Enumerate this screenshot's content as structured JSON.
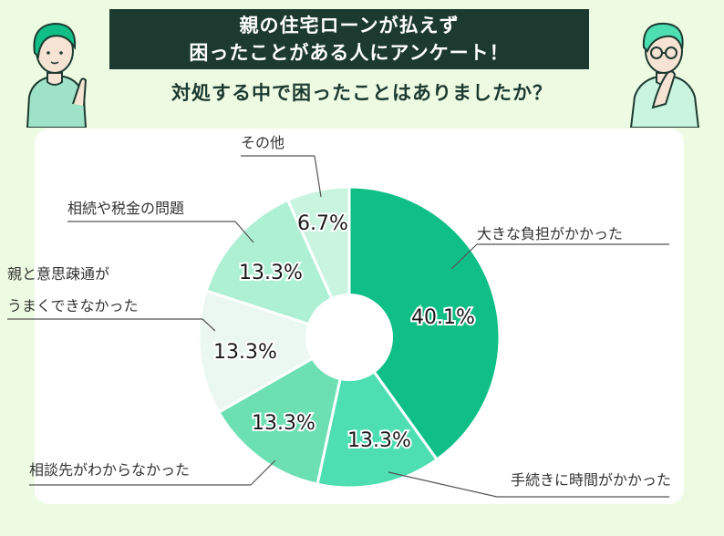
{
  "header": {
    "title_line1": "親の住宅ローンが払えず",
    "title_line2": "困ったことがある人にアンケート！",
    "question": "対処する中で困ったことはありましたか？"
  },
  "colors": {
    "banner_bg": "#1d3a31",
    "background": "#eefbe3",
    "slice_1": "#0fbf85",
    "slice_2": "#4ddeb2",
    "slice_3": "#6ce0b3",
    "slice_4": "#ebf8f1",
    "slice_5": "#aef0d3",
    "slice_6": "#c9f4e0",
    "slice_7": "#ebf8f1"
  },
  "chart_data": {
    "type": "pie",
    "donut": true,
    "title": "対処する中で困ったことはありましたか？",
    "slices": [
      {
        "label": "大きな負担がかかった",
        "value": 40.1,
        "value_label": "40.1%"
      },
      {
        "label": "手続きに時間がかかった",
        "value": 13.3,
        "value_label": "13.3%"
      },
      {
        "label": "相談先がわからなかった",
        "value": 13.3,
        "value_label": "13.3%"
      },
      {
        "label": "親と意思疎通がうまくできなかった",
        "label_lines": [
          "親と意思疎通が",
          "うまくできなかった"
        ],
        "value": 13.3,
        "value_label": "13.3%"
      },
      {
        "label": "相続や税金の問題",
        "value": 13.3,
        "value_label": "13.3%"
      },
      {
        "label": "その他",
        "value": 6.7,
        "value_label": "6.7%"
      }
    ]
  }
}
